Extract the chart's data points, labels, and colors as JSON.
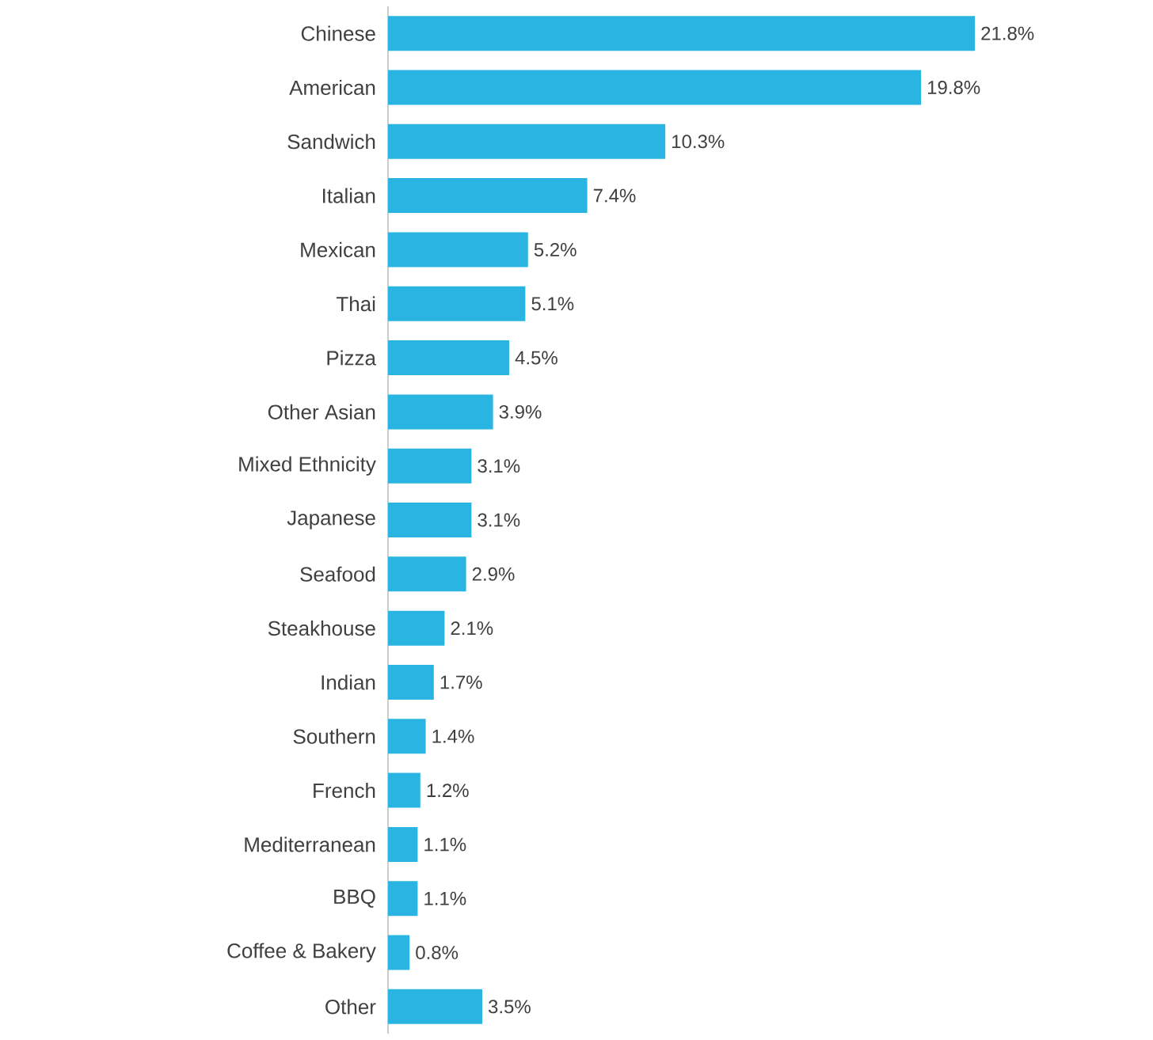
{
  "chart_data": {
    "type": "bar",
    "orientation": "horizontal",
    "color": "#29b4e2",
    "categories": [
      "Chinese",
      "American",
      "Sandwich",
      "Italian",
      "Mexican",
      "Thai",
      "Pizza",
      "Other Asian",
      "Mixed Ethnicity",
      "Japanese",
      "Seafood",
      "Steakhouse",
      "Indian",
      "Southern",
      "French",
      "Mediterranean",
      "BBQ",
      "Coffee & Bakery",
      "Other"
    ],
    "values": [
      21.8,
      19.8,
      10.3,
      7.4,
      5.2,
      5.1,
      4.5,
      3.9,
      3.1,
      3.1,
      2.9,
      2.1,
      1.7,
      1.4,
      1.2,
      1.1,
      1.1,
      0.8,
      3.5
    ],
    "value_labels": [
      "21.8%",
      "19.8%",
      "10.3%",
      "7.4%",
      "5.2%",
      "5.1%",
      "4.5%",
      "3.9%",
      "3.1%",
      "3.1%",
      "2.9%",
      "2.1%",
      "1.7%",
      "1.4%",
      "1.2%",
      "1.1%",
      "1.1%",
      "0.8%",
      "3.5%"
    ]
  }
}
